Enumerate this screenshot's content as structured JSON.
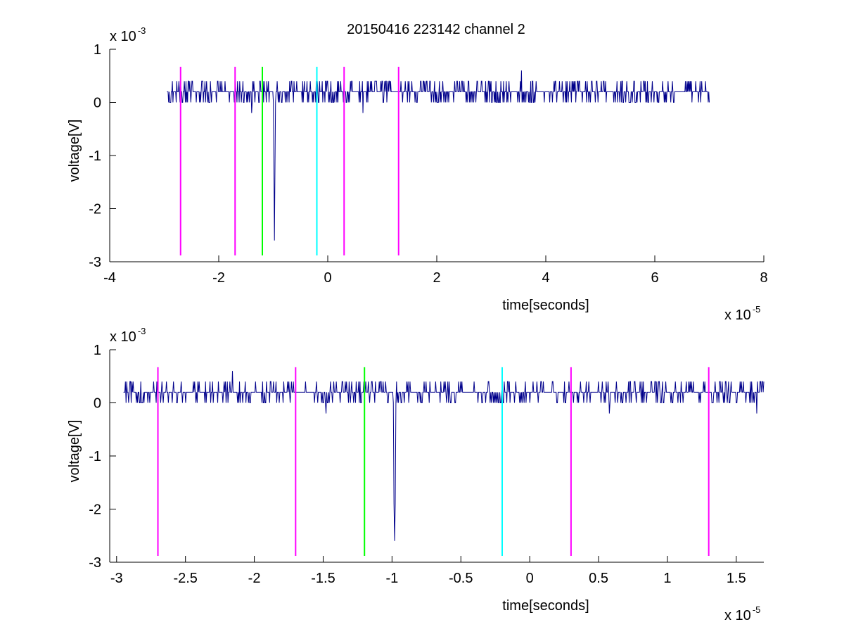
{
  "figure": {
    "title": "20150416 223142 channel 2",
    "background": "#ffffff"
  },
  "chart_data": [
    {
      "type": "line",
      "panel": "top",
      "xlabel": "time[seconds]",
      "ylabel": "voltage[V]",
      "xlim": [
        -4e-05,
        8e-05
      ],
      "ylim": [
        -0.003,
        0.001
      ],
      "x_ticks": [
        -4e-05,
        -2e-05,
        0,
        2e-05,
        4e-05,
        6e-05,
        8e-05
      ],
      "x_tick_labels": [
        "-4",
        "-2",
        "0",
        "2",
        "4",
        "6",
        "8"
      ],
      "x_exponent_base": "x 10",
      "x_exponent": "-5",
      "y_ticks": [
        0.001,
        0,
        -0.001,
        -0.002,
        -0.003
      ],
      "y_tick_labels": [
        "1",
        "0",
        "-1",
        "-2",
        "-3"
      ],
      "y_exponent_base": "x 10",
      "y_exponent": "-3",
      "grid": false,
      "box": "open",
      "series": [
        {
          "color": "#00008b",
          "x_range": [
            -2.95e-05,
            7e-05
          ],
          "baseline": 0.0002,
          "noise_levels": [
            0.0004,
            0.0002,
            0.0
          ],
          "spike": {
            "x": -9.8e-06,
            "min": -0.0026,
            "shoulder": -0.0012
          },
          "outliers": [
            {
              "x": 3.55e-05,
              "y": 0.0006
            },
            {
              "x": -1.4e-05,
              "y": -0.0002
            },
            {
              "x": 6.5e-06,
              "y": -0.0002
            }
          ]
        }
      ],
      "markers": [
        {
          "x": -2.7e-05,
          "color": "#ff00ff",
          "y_range": [
            -0.00288,
            0.00067
          ]
        },
        {
          "x": -1.7e-05,
          "color": "#ff00ff",
          "y_range": [
            -0.00288,
            0.00067
          ]
        },
        {
          "x": -1.2e-05,
          "color": "#00ff00",
          "y_range": [
            -0.00288,
            0.00067
          ]
        },
        {
          "x": -2e-06,
          "color": "#00ffff",
          "y_range": [
            -0.00288,
            0.00067
          ]
        },
        {
          "x": 3e-06,
          "color": "#ff00ff",
          "y_range": [
            -0.00288,
            0.00067
          ]
        },
        {
          "x": 1.3e-05,
          "color": "#ff00ff",
          "y_range": [
            -0.00288,
            0.00067
          ]
        }
      ]
    },
    {
      "type": "line",
      "panel": "bottom",
      "xlabel": "time[seconds]",
      "ylabel": "voltage[V]",
      "xlim": [
        -3.05e-05,
        1.7e-05
      ],
      "ylim": [
        -0.003,
        0.001
      ],
      "x_ticks": [
        -3e-05,
        -2.5e-05,
        -2e-05,
        -1.5e-05,
        -1e-05,
        -5e-06,
        0,
        5e-06,
        1e-05,
        1.5e-05
      ],
      "x_tick_labels": [
        "-3",
        "-2.5",
        "-2",
        "-1.5",
        "-1",
        "-0.5",
        "0",
        "0.5",
        "1",
        "1.5"
      ],
      "x_exponent_base": "x 10",
      "x_exponent": "-5",
      "y_ticks": [
        0.001,
        0,
        -0.001,
        -0.002,
        -0.003
      ],
      "y_tick_labels": [
        "1",
        "0",
        "-1",
        "-2",
        "-3"
      ],
      "y_exponent_base": "x 10",
      "y_exponent": "-3",
      "grid": false,
      "box": "open",
      "series": [
        {
          "color": "#00008b",
          "x_range": [
            -2.95e-05,
            1.7e-05
          ],
          "baseline": 0.0002,
          "noise_levels": [
            0.0004,
            0.0002,
            0.0
          ],
          "spike": {
            "x": -9.8e-06,
            "min": -0.0026,
            "shoulder": -0.0019
          },
          "outliers": [
            {
              "x": -2.16e-05,
              "y": 0.0006
            },
            {
              "x": -1.48e-05,
              "y": -0.0002
            },
            {
              "x": 5.8e-06,
              "y": -0.0002
            },
            {
              "x": 1.65e-05,
              "y": -0.0002
            }
          ]
        }
      ],
      "markers": [
        {
          "x": -2.7e-05,
          "color": "#ff00ff",
          "y_range": [
            -0.00288,
            0.00067
          ]
        },
        {
          "x": -1.7e-05,
          "color": "#ff00ff",
          "y_range": [
            -0.00288,
            0.00067
          ]
        },
        {
          "x": -1.2e-05,
          "color": "#00ff00",
          "y_range": [
            -0.00288,
            0.00067
          ]
        },
        {
          "x": -2e-06,
          "color": "#00ffff",
          "y_range": [
            -0.00288,
            0.00067
          ]
        },
        {
          "x": 3e-06,
          "color": "#ff00ff",
          "y_range": [
            -0.00288,
            0.00067
          ]
        },
        {
          "x": 1.3e-05,
          "color": "#ff00ff",
          "y_range": [
            -0.00288,
            0.00067
          ]
        }
      ]
    }
  ]
}
